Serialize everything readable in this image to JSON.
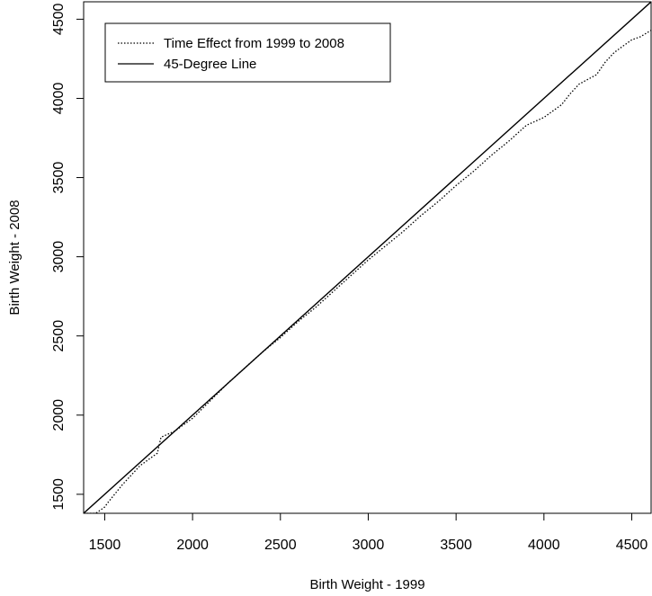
{
  "chart_data": {
    "type": "line",
    "title": "",
    "xlabel": "Birth Weight - 1999",
    "ylabel": "Birth Weight - 2008",
    "xlim": [
      1380,
      4610
    ],
    "ylim": [
      1380,
      4610
    ],
    "xticks": [
      1500,
      2000,
      2500,
      3000,
      3500,
      4000,
      4500
    ],
    "yticks": [
      1500,
      2000,
      2500,
      3000,
      3500,
      4000,
      4500
    ],
    "x_tick_labels": [
      "1500",
      "2000",
      "2500",
      "3000",
      "3500",
      "4000",
      "4500"
    ],
    "y_tick_labels": [
      "1500",
      "2000",
      "2500",
      "3000",
      "3500",
      "4000",
      "4500"
    ],
    "grid": false,
    "legend_position": "top-left",
    "series": [
      {
        "name": "Time Effect from 1999 to 2008",
        "style": "dotted",
        "color": "#000000",
        "x": [
          1380,
          1450,
          1500,
          1520,
          1600,
          1700,
          1800,
          1820,
          1900,
          2000,
          2100,
          2200,
          2300,
          2400,
          2500,
          2600,
          2700,
          2800,
          2900,
          3000,
          3100,
          3200,
          3300,
          3400,
          3500,
          3600,
          3700,
          3800,
          3900,
          4000,
          4100,
          4150,
          4200,
          4300,
          4350,
          4400,
          4450,
          4500,
          4550,
          4610
        ],
        "y": [
          1380,
          1380,
          1420,
          1450,
          1560,
          1680,
          1760,
          1860,
          1900,
          1980,
          2090,
          2200,
          2300,
          2400,
          2490,
          2590,
          2680,
          2780,
          2880,
          2980,
          3070,
          3160,
          3260,
          3350,
          3450,
          3540,
          3640,
          3730,
          3830,
          3880,
          3960,
          4030,
          4090,
          4150,
          4230,
          4290,
          4330,
          4370,
          4390,
          4430
        ]
      },
      {
        "name": "45-Degree Line",
        "style": "solid",
        "color": "#000000",
        "x": [
          1380,
          4610
        ],
        "y": [
          1380,
          4610
        ]
      }
    ]
  }
}
